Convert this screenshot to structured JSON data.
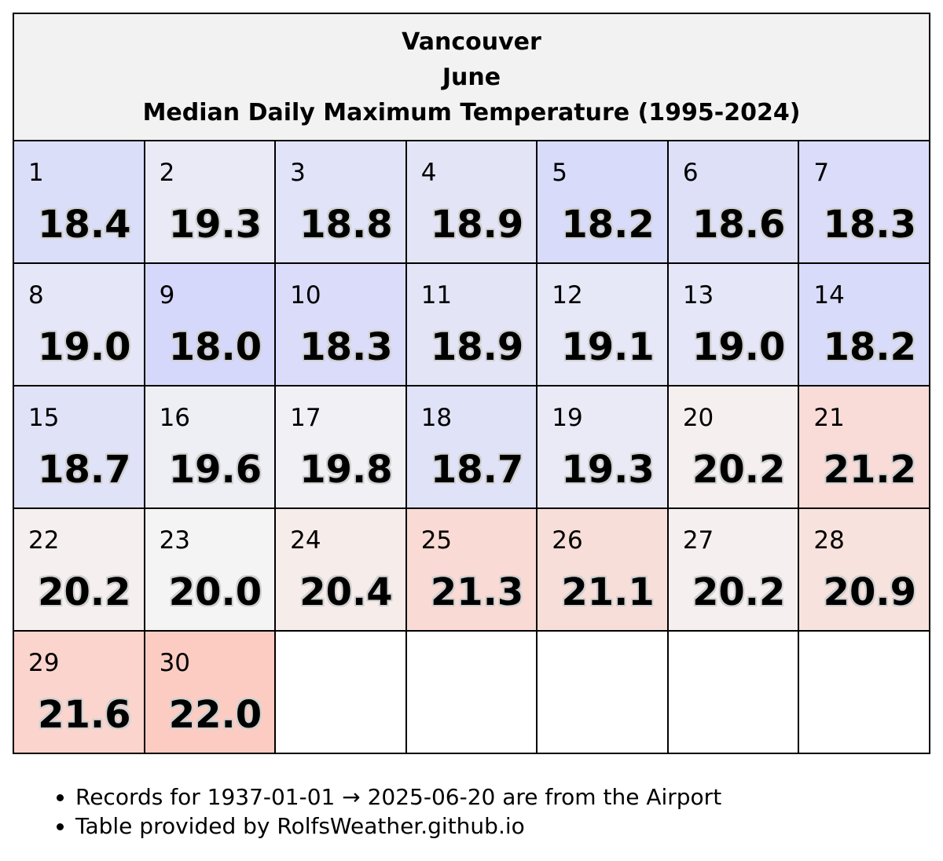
{
  "header": {
    "city": "Vancouver",
    "month": "June",
    "subtitle": "Median Daily Maximum Temperature (1995-2024)"
  },
  "chart_data": {
    "type": "heatmap",
    "title": "Vancouver June Median Daily Maximum Temperature (1995-2024)",
    "layout": "calendar",
    "columns": 7,
    "rows": 5,
    "days": [
      1,
      2,
      3,
      4,
      5,
      6,
      7,
      8,
      9,
      10,
      11,
      12,
      13,
      14,
      15,
      16,
      17,
      18,
      19,
      20,
      21,
      22,
      23,
      24,
      25,
      26,
      27,
      28,
      29,
      30
    ],
    "values": [
      "18.4",
      "19.3",
      "18.8",
      "18.9",
      "18.2",
      "18.6",
      "18.3",
      "19.0",
      "18.0",
      "18.3",
      "18.9",
      "19.1",
      "19.0",
      "18.2",
      "18.7",
      "19.6",
      "19.8",
      "18.7",
      "19.3",
      "20.2",
      "21.2",
      "20.2",
      "20.0",
      "20.4",
      "21.3",
      "21.1",
      "20.2",
      "20.9",
      "21.6",
      "22.0"
    ],
    "color_scale": {
      "cold": "#d5d8fa",
      "neutral": "#f4f4f4",
      "warm": "#fcccc3",
      "min": 18.0,
      "mid": 20.0,
      "max": 22.0
    },
    "empty_color": "#ffffff"
  },
  "notes": [
    "Records for 1937-01-01 → 2025-06-20 are from the Airport",
    "Table provided by RolfsWeather.github.io"
  ]
}
